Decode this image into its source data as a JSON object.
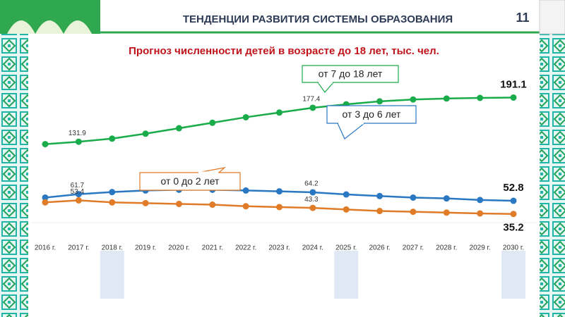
{
  "slide": {
    "title": "ТЕНДЕНЦИИ РАЗВИТИЯ СИСТЕМЫ ОБРАЗОВАНИЯ",
    "page_number": "11"
  },
  "chart_data": {
    "type": "line",
    "title": "Прогноз численности детей в возрасте до 18 лет, тыс. чел.",
    "categories": [
      "2016 г.",
      "2017 г.",
      "2018 г.",
      "2019 г.",
      "2020 г.",
      "2021 г.",
      "2022 г.",
      "2023 г.",
      "2024 г.",
      "2025 г.",
      "2026 г.",
      "2027 г.",
      "2028 г.",
      "2029 г.",
      "2030 г."
    ],
    "ylim": [
      0,
      234
    ],
    "series": [
      {
        "name": "от 7 до 18 лет",
        "color": "#1aab4b",
        "values": [
          128.7,
          131.9,
          136.1,
          142.7,
          150.0,
          157.3,
          164.7,
          171.0,
          177.4,
          182.0,
          186.0,
          188.5,
          189.8,
          190.6,
          191.1
        ],
        "value_labels": [
          null,
          "131.9",
          null,
          null,
          null,
          null,
          null,
          null,
          "177.4",
          null,
          null,
          null,
          null,
          null,
          "191.1"
        ]
      },
      {
        "name": "от 3 до 6 лет",
        "color": "#2a78c2",
        "values": [
          57.1,
          61.7,
          64.5,
          66.6,
          67.6,
          67.6,
          66.6,
          65.5,
          64.2,
          61.3,
          59.2,
          57.1,
          56.0,
          53.9,
          52.8
        ],
        "value_labels": [
          null,
          "61.7",
          null,
          null,
          null,
          null,
          null,
          null,
          "64.2",
          null,
          null,
          null,
          null,
          null,
          "52.8"
        ]
      },
      {
        "name": "от 0 до 2 лет",
        "color": "#e07b28",
        "values": [
          50.7,
          53.4,
          50.7,
          49.7,
          48.6,
          47.6,
          45.5,
          44.4,
          43.3,
          41.2,
          39.1,
          38.1,
          37.0,
          35.9,
          35.2
        ],
        "value_labels": [
          null,
          "53.4",
          null,
          null,
          null,
          null,
          null,
          null,
          "43.3",
          null,
          null,
          null,
          null,
          null,
          "35.2"
        ]
      }
    ]
  }
}
